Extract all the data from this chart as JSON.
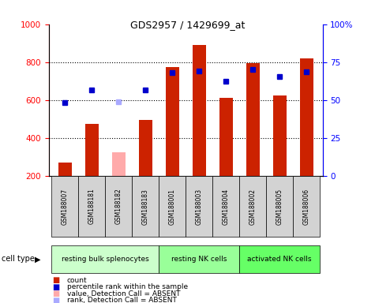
{
  "title": "GDS2957 / 1429699_at",
  "samples": [
    "GSM188007",
    "GSM188181",
    "GSM188182",
    "GSM188183",
    "GSM188001",
    "GSM188003",
    "GSM188004",
    "GSM188002",
    "GSM188005",
    "GSM188006"
  ],
  "count_values": [
    270,
    475,
    null,
    495,
    775,
    890,
    610,
    795,
    625,
    820
  ],
  "count_absent": [
    null,
    null,
    325,
    null,
    null,
    null,
    null,
    null,
    null,
    null
  ],
  "rank_values": [
    585,
    655,
    null,
    655,
    745,
    755,
    700,
    760,
    725,
    750
  ],
  "rank_absent": [
    null,
    null,
    590,
    null,
    null,
    null,
    null,
    null,
    null,
    null
  ],
  "cell_groups": [
    {
      "label": "resting bulk splenocytes",
      "start": 0,
      "end": 4,
      "color": "#ccffcc"
    },
    {
      "label": "resting NK cells",
      "start": 4,
      "end": 7,
      "color": "#99ff99"
    },
    {
      "label": "activated NK cells",
      "start": 7,
      "end": 10,
      "color": "#66ff66"
    }
  ],
  "bar_color_present": "#cc2200",
  "bar_color_absent": "#ffaaaa",
  "dot_color_present": "#0000cc",
  "dot_color_absent": "#aaaaff",
  "ylim_left": [
    200,
    1000
  ],
  "ylim_right": [
    0,
    100
  ],
  "ylabel_left_ticks": [
    200,
    400,
    600,
    800,
    1000
  ],
  "ylabel_right_ticks": [
    0,
    25,
    50,
    75,
    100
  ],
  "ylabel_right_labels": [
    "0",
    "25",
    "50",
    "75",
    "100%"
  ],
  "bg_color": "#ffffff",
  "legend_items": [
    {
      "label": "count",
      "color": "#cc2200"
    },
    {
      "label": "percentile rank within the sample",
      "color": "#0000cc"
    },
    {
      "label": "value, Detection Call = ABSENT",
      "color": "#ffaaaa"
    },
    {
      "label": "rank, Detection Call = ABSENT",
      "color": "#aaaaff"
    }
  ],
  "col_bg": "#d3d3d3",
  "cell_type_label": "cell type"
}
